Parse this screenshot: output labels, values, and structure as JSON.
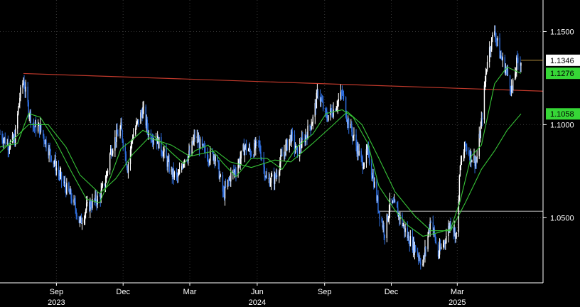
{
  "chart_data": {
    "type": "candlestick",
    "title": "",
    "xlabel": "",
    "ylabel": "",
    "ylim": [
      1.015,
      1.167
    ],
    "y_ticks": [
      "1.0500",
      "1.1000",
      "1.1500"
    ],
    "x_ticks": [
      {
        "month": "Sep",
        "year": "2023",
        "date": "2023-09-01"
      },
      {
        "month": "Dec",
        "year": "",
        "date": "2023-12-01"
      },
      {
        "month": "Mar",
        "year": "",
        "date": "2024-03-01"
      },
      {
        "month": "Jun",
        "year": "2024",
        "date": "2024-06-01"
      },
      {
        "month": "Sep",
        "year": "",
        "date": "2024-09-01"
      },
      {
        "month": "Dec",
        "year": "",
        "date": "2024-12-01"
      },
      {
        "month": "Mar",
        "year": "2025",
        "date": "2025-03-01"
      }
    ],
    "x_range": [
      "2023-06-16",
      "2025-05-27"
    ],
    "grid": true,
    "colors": {
      "up": "#ffffff",
      "down": "#2f6fe0",
      "ma_fast": "#37c437",
      "ma_slow": "#37c437",
      "trendline": "#c0392b",
      "horizontal": "#ffffff",
      "grid": "#3a3a3a",
      "last_badge_bg": "#ffffff",
      "ma_badge_bg": "#36d636"
    },
    "price_labels": [
      {
        "text": "1.1346",
        "value": 1.1346,
        "kind": "last"
      },
      {
        "text": "1.1276",
        "value": 1.1276,
        "kind": "ma"
      },
      {
        "text": "1.1058",
        "value": 1.1058,
        "kind": "ma"
      }
    ],
    "trendline": {
      "start": [
        "2023-07-18",
        1.1275
      ],
      "end": [
        "2025-05-27",
        1.118
      ]
    },
    "horizontal_line": {
      "start": "2024-11-15",
      "value": 1.0535
    },
    "close_series": [
      [
        "2023-06-16",
        1.095
      ],
      [
        "2023-06-28",
        1.089
      ],
      [
        "2023-07-06",
        1.092
      ],
      [
        "2023-07-13",
        1.115
      ],
      [
        "2023-07-18",
        1.124
      ],
      [
        "2023-07-25",
        1.108
      ],
      [
        "2023-08-01",
        1.099
      ],
      [
        "2023-08-10",
        1.098
      ],
      [
        "2023-08-21",
        1.087
      ],
      [
        "2023-08-31",
        1.078
      ],
      [
        "2023-09-07",
        1.071
      ],
      [
        "2023-09-14",
        1.066
      ],
      [
        "2023-09-21",
        1.061
      ],
      [
        "2023-09-28",
        1.054
      ],
      [
        "2023-10-03",
        1.047
      ],
      [
        "2023-10-12",
        1.055
      ],
      [
        "2023-10-20",
        1.058
      ],
      [
        "2023-10-30",
        1.061
      ],
      [
        "2023-11-07",
        1.07
      ],
      [
        "2023-11-14",
        1.086
      ],
      [
        "2023-11-21",
        1.093
      ],
      [
        "2023-11-28",
        1.098
      ],
      [
        "2023-12-07",
        1.077
      ],
      [
        "2023-12-14",
        1.094
      ],
      [
        "2023-12-21",
        1.101
      ],
      [
        "2023-12-28",
        1.108
      ],
      [
        "2024-01-05",
        1.095
      ],
      [
        "2024-01-15",
        1.093
      ],
      [
        "2024-01-25",
        1.085
      ],
      [
        "2024-02-05",
        1.074
      ],
      [
        "2024-02-14",
        1.071
      ],
      [
        "2024-02-22",
        1.082
      ],
      [
        "2024-03-01",
        1.084
      ],
      [
        "2024-03-08",
        1.094
      ],
      [
        "2024-03-18",
        1.087
      ],
      [
        "2024-03-26",
        1.083
      ],
      [
        "2024-04-05",
        1.084
      ],
      [
        "2024-04-16",
        1.062
      ],
      [
        "2024-04-25",
        1.072
      ],
      [
        "2024-05-03",
        1.076
      ],
      [
        "2024-05-15",
        1.088
      ],
      [
        "2024-05-24",
        1.085
      ],
      [
        "2024-06-03",
        1.09
      ],
      [
        "2024-06-14",
        1.07
      ],
      [
        "2024-06-25",
        1.071
      ],
      [
        "2024-07-05",
        1.083
      ],
      [
        "2024-07-17",
        1.094
      ],
      [
        "2024-07-25",
        1.085
      ],
      [
        "2024-08-05",
        1.093
      ],
      [
        "2024-08-16",
        1.103
      ],
      [
        "2024-08-23",
        1.118
      ],
      [
        "2024-09-03",
        1.104
      ],
      [
        "2024-09-13",
        1.108
      ],
      [
        "2024-09-25",
        1.117
      ],
      [
        "2024-10-02",
        1.103
      ],
      [
        "2024-10-10",
        1.094
      ],
      [
        "2024-10-22",
        1.079
      ],
      [
        "2024-10-30",
        1.085
      ],
      [
        "2024-11-06",
        1.072
      ],
      [
        "2024-11-14",
        1.054
      ],
      [
        "2024-11-22",
        1.042
      ],
      [
        "2024-11-29",
        1.057
      ],
      [
        "2024-12-06",
        1.056
      ],
      [
        "2024-12-13",
        1.05
      ],
      [
        "2024-12-23",
        1.04
      ],
      [
        "2025-01-02",
        1.034
      ],
      [
        "2025-01-13",
        1.025
      ],
      [
        "2025-01-24",
        1.05
      ],
      [
        "2025-02-03",
        1.03
      ],
      [
        "2025-02-12",
        1.038
      ],
      [
        "2025-02-20",
        1.048
      ],
      [
        "2025-02-28",
        1.04
      ],
      [
        "2025-03-05",
        1.077
      ],
      [
        "2025-03-12",
        1.089
      ],
      [
        "2025-03-20",
        1.083
      ],
      [
        "2025-03-27",
        1.08
      ],
      [
        "2025-04-03",
        1.101
      ],
      [
        "2025-04-11",
        1.136
      ],
      [
        "2025-04-21",
        1.151
      ],
      [
        "2025-04-28",
        1.138
      ],
      [
        "2025-05-08",
        1.128
      ],
      [
        "2025-05-15",
        1.118
      ],
      [
        "2025-05-21",
        1.133
      ],
      [
        "2025-05-27",
        1.1346
      ]
    ],
    "ma_fast_series": [
      [
        "2023-06-16",
        1.088
      ],
      [
        "2023-07-10",
        1.09
      ],
      [
        "2023-07-25",
        1.106
      ],
      [
        "2023-08-10",
        1.104
      ],
      [
        "2023-08-31",
        1.091
      ],
      [
        "2023-09-21",
        1.075
      ],
      [
        "2023-10-12",
        1.06
      ],
      [
        "2023-10-30",
        1.058
      ],
      [
        "2023-11-14",
        1.072
      ],
      [
        "2023-11-28",
        1.087
      ],
      [
        "2023-12-14",
        1.092
      ],
      [
        "2023-12-28",
        1.097
      ],
      [
        "2024-01-15",
        1.093
      ],
      [
        "2024-02-05",
        1.085
      ],
      [
        "2024-02-22",
        1.079
      ],
      [
        "2024-03-08",
        1.086
      ],
      [
        "2024-03-26",
        1.089
      ],
      [
        "2024-04-16",
        1.079
      ],
      [
        "2024-05-03",
        1.072
      ],
      [
        "2024-05-24",
        1.082
      ],
      [
        "2024-06-14",
        1.082
      ],
      [
        "2024-07-05",
        1.076
      ],
      [
        "2024-07-25",
        1.088
      ],
      [
        "2024-08-16",
        1.095
      ],
      [
        "2024-09-03",
        1.106
      ],
      [
        "2024-09-25",
        1.108
      ],
      [
        "2024-10-10",
        1.104
      ],
      [
        "2024-10-30",
        1.09
      ],
      [
        "2024-11-14",
        1.067
      ],
      [
        "2024-12-06",
        1.054
      ],
      [
        "2024-12-23",
        1.046
      ],
      [
        "2025-01-13",
        1.04
      ],
      [
        "2025-02-03",
        1.042
      ],
      [
        "2025-02-20",
        1.044
      ],
      [
        "2025-03-05",
        1.059
      ],
      [
        "2025-03-20",
        1.083
      ],
      [
        "2025-04-03",
        1.089
      ],
      [
        "2025-04-21",
        1.122
      ],
      [
        "2025-05-08",
        1.131
      ],
      [
        "2025-05-27",
        1.1276
      ]
    ],
    "ma_slow_series": [
      [
        "2023-06-16",
        1.085
      ],
      [
        "2023-07-25",
        1.1
      ],
      [
        "2023-08-21",
        1.1
      ],
      [
        "2023-09-14",
        1.088
      ],
      [
        "2023-10-03",
        1.073
      ],
      [
        "2023-10-30",
        1.063
      ],
      [
        "2023-11-21",
        1.071
      ],
      [
        "2023-12-14",
        1.084
      ],
      [
        "2024-01-05",
        1.093
      ],
      [
        "2024-02-05",
        1.089
      ],
      [
        "2024-03-01",
        1.083
      ],
      [
        "2024-04-05",
        1.086
      ],
      [
        "2024-04-25",
        1.08
      ],
      [
        "2024-05-24",
        1.077
      ],
      [
        "2024-06-25",
        1.081
      ],
      [
        "2024-07-17",
        1.08
      ],
      [
        "2024-08-16",
        1.09
      ],
      [
        "2024-09-13",
        1.1
      ],
      [
        "2024-10-02",
        1.107
      ],
      [
        "2024-10-22",
        1.1
      ],
      [
        "2024-11-14",
        1.082
      ],
      [
        "2024-12-06",
        1.064
      ],
      [
        "2025-01-02",
        1.051
      ],
      [
        "2025-01-24",
        1.043
      ],
      [
        "2025-02-20",
        1.043
      ],
      [
        "2025-03-12",
        1.058
      ],
      [
        "2025-04-03",
        1.076
      ],
      [
        "2025-04-21",
        1.086
      ],
      [
        "2025-05-08",
        1.097
      ],
      [
        "2025-05-27",
        1.1058
      ]
    ]
  }
}
